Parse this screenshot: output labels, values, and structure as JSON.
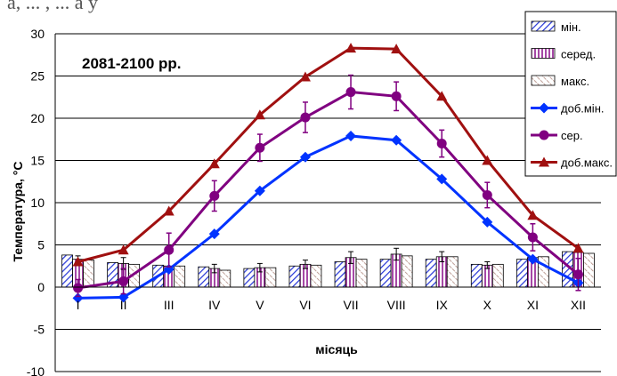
{
  "header_fragment": "а, ... , ... а у",
  "chart_data": {
    "type": "bar",
    "title": "2081-2100 рр.",
    "xlabel": "місяць",
    "ylabel": "Температура, °С",
    "ylim": [
      -10,
      30
    ],
    "yticks": [
      "30",
      "25",
      "20",
      "15",
      "10",
      "5",
      "0",
      "-5",
      "-10"
    ],
    "categories": [
      "I",
      "II",
      "III",
      "IV",
      "V",
      "VI",
      "VII",
      "VIII",
      "IX",
      "X",
      "XI",
      "XII"
    ],
    "bar_series": [
      {
        "name": "мін.",
        "values": [
          3.8,
          2.9,
          2.6,
          2.4,
          2.2,
          2.5,
          3.0,
          3.3,
          3.3,
          2.7,
          3.3,
          4.2
        ],
        "err": [
          0,
          0,
          0,
          0,
          0,
          0,
          0,
          0,
          0,
          0,
          0,
          0
        ]
      },
      {
        "name": "серед.",
        "values": [
          3.3,
          2.8,
          2.5,
          2.2,
          2.3,
          2.7,
          3.5,
          3.9,
          3.6,
          2.6,
          3.5,
          4.1
        ],
        "err": [
          0.4,
          0.7,
          0,
          0.5,
          0.5,
          0.5,
          0.7,
          0.7,
          0.6,
          0.4,
          0,
          0
        ]
      },
      {
        "name": "макс.",
        "values": [
          3.2,
          2.7,
          2.5,
          2.0,
          2.3,
          2.6,
          3.3,
          3.7,
          3.6,
          2.7,
          3.6,
          4.0
        ],
        "err": [
          0,
          0,
          0,
          0,
          0,
          0,
          0,
          0,
          0,
          0,
          0,
          0
        ]
      }
    ],
    "line_series": [
      {
        "name": "доб.мін.",
        "color": "#0033ff",
        "marker": "diamond",
        "values": [
          -1.3,
          -1.2,
          2.1,
          6.3,
          11.4,
          15.4,
          17.9,
          17.4,
          12.8,
          7.7,
          3.3,
          0.5
        ]
      },
      {
        "name": "сер.",
        "color": "#800080",
        "marker": "circle",
        "values": [
          -0.1,
          0.7,
          4.4,
          10.8,
          16.5,
          20.1,
          23.1,
          22.6,
          17.0,
          10.9,
          5.9,
          1.5
        ],
        "err": [
          1.0,
          1.5,
          2.0,
          1.8,
          1.6,
          1.8,
          2.0,
          1.7,
          1.6,
          1.5,
          1.6,
          1.9
        ]
      },
      {
        "name": "доб.макс.",
        "color": "#a01010",
        "marker": "triangle",
        "values": [
          3.0,
          4.4,
          9.0,
          14.6,
          20.4,
          24.9,
          28.3,
          28.2,
          22.6,
          15.0,
          8.5,
          4.6
        ]
      }
    ],
    "legend_position": "top-right",
    "grid": "horizontal"
  }
}
